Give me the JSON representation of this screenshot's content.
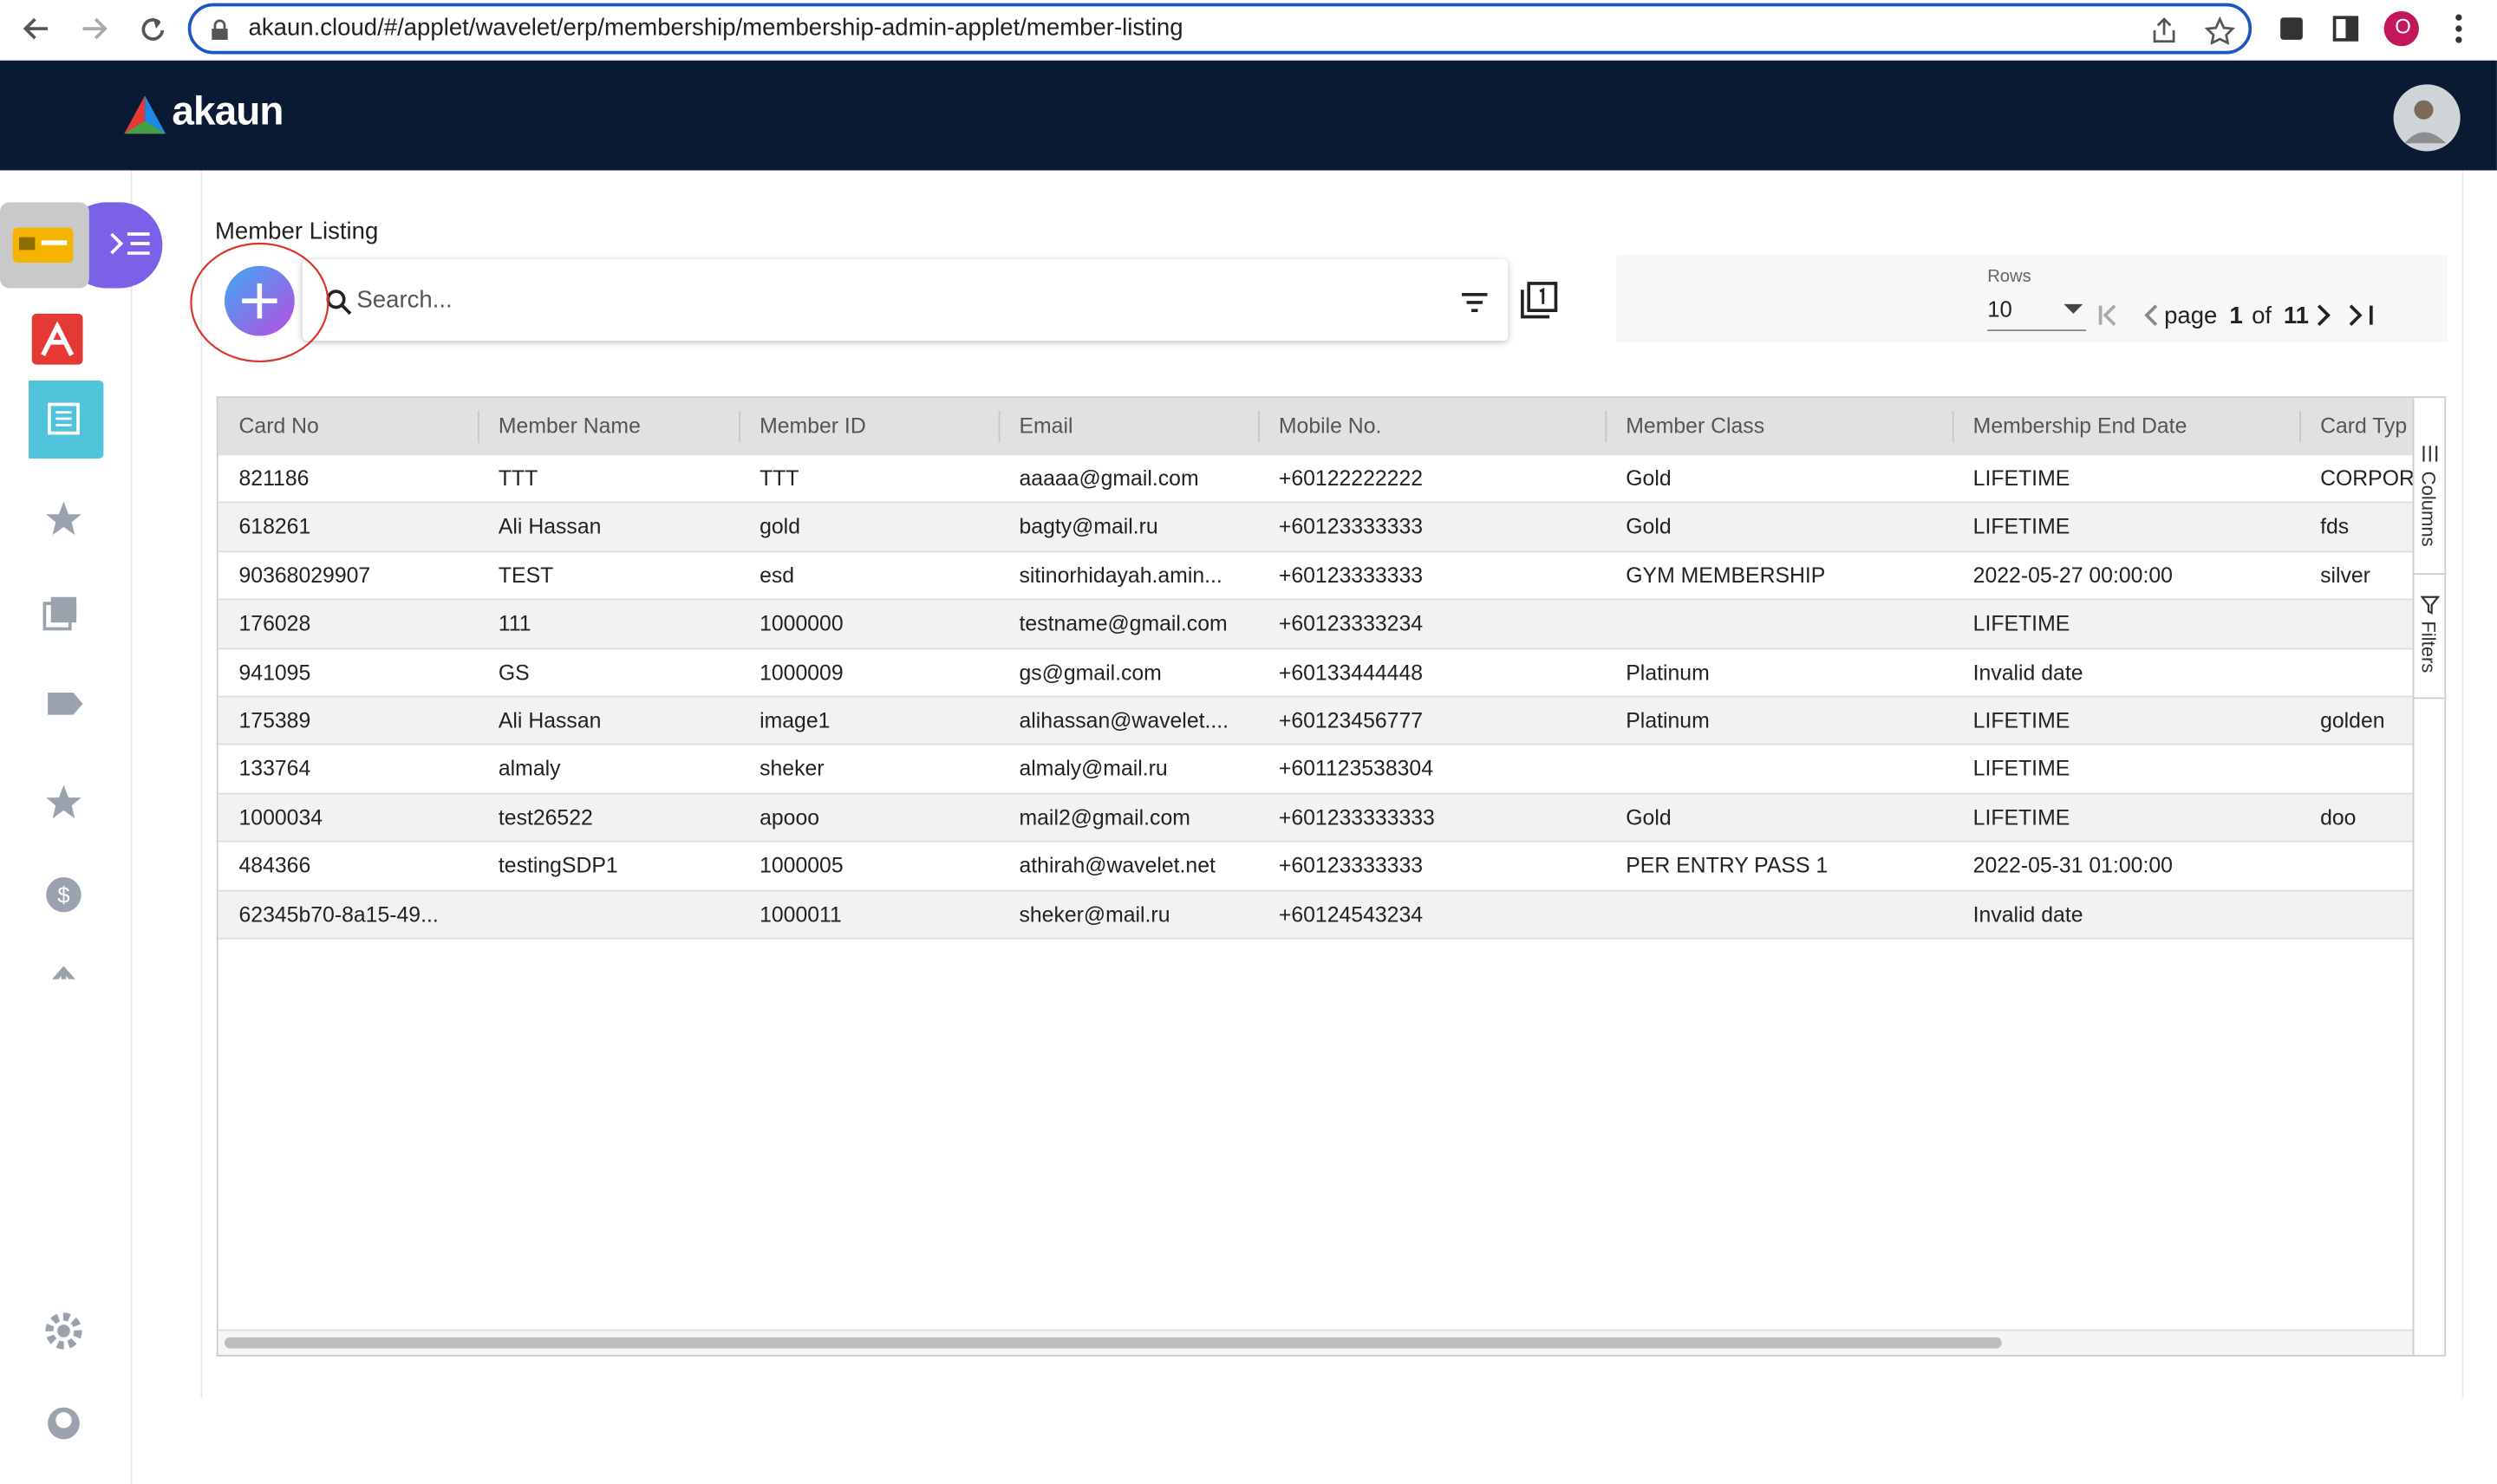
{
  "browser": {
    "url": "akaun.cloud/#/applet/wavelet/erp/membership/membership-admin-applet/member-listing",
    "profile_initial": "O"
  },
  "header": {
    "logo": "akaun"
  },
  "page": {
    "title": "Member Listing",
    "search_placeholder": "Search...",
    "rows_label": "Rows",
    "rows_value": "10",
    "pagination": {
      "page_word": "page",
      "page": "1",
      "of_word": "of",
      "total": "11"
    }
  },
  "side_tabs": [
    "Columns",
    "Filters"
  ],
  "table": {
    "columns": [
      "Card No",
      "Member Name",
      "Member ID",
      "Email",
      "Mobile No.",
      "Member Class",
      "Membership End Date",
      "Card Typ"
    ],
    "rows": [
      [
        "821186",
        "TTT",
        "TTT",
        "aaaaa@gmail.com",
        "+60122222222",
        "Gold",
        "LIFETIME",
        "CORPOR"
      ],
      [
        "618261",
        "Ali Hassan",
        "gold",
        "bagty@mail.ru",
        "+60123333333",
        "Gold",
        "LIFETIME",
        "fds"
      ],
      [
        "90368029907",
        "TEST",
        "esd",
        "sitinorhidayah.amin...",
        "+60123333333",
        "GYM MEMBERSHIP",
        "2022-05-27 00:00:00",
        "silver"
      ],
      [
        "176028",
        "111",
        "1000000",
        "testname@gmail.com",
        "+60123333234",
        null,
        "LIFETIME",
        null
      ],
      [
        "941095",
        "GS",
        "1000009",
        "gs@gmail.com",
        "+60133444448",
        "Platinum",
        "Invalid date",
        null
      ],
      [
        "175389",
        "Ali Hassan",
        "image1",
        "alihassan@wavelet....",
        "+60123456777",
        "Platinum",
        "LIFETIME",
        "golden"
      ],
      [
        "133764",
        "almaly",
        "sheker",
        "almaly@mail.ru",
        "+601123538304",
        null,
        "LIFETIME",
        null
      ],
      [
        "1000034",
        "test26522",
        "apooo",
        "mail2@gmail.com",
        "+601233333333",
        "Gold",
        "LIFETIME",
        "doo"
      ],
      [
        "484366",
        "testingSDP1",
        "1000005",
        "athirah@wavelet.net",
        "+60123333333",
        "PER ENTRY PASS 1",
        "2022-05-31 01:00:00",
        null
      ],
      [
        "62345b70-8a15-49...",
        null,
        "1000011",
        "sheker@mail.ru",
        "+60124543234",
        null,
        "Invalid date",
        null
      ]
    ]
  }
}
